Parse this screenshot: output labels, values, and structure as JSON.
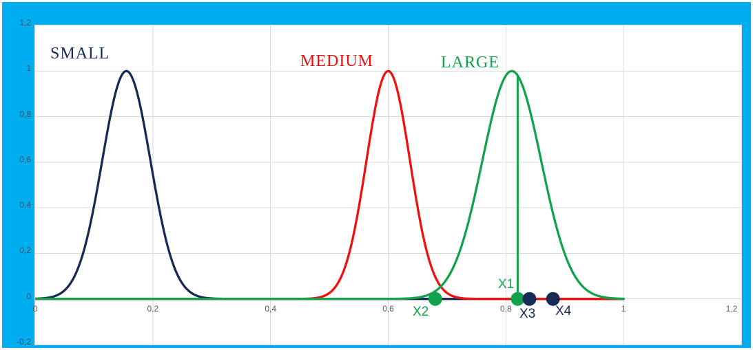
{
  "frame": {
    "border_color": "#00AEEF",
    "plot_background": "#FFFFFF",
    "grid_color": "#D9D9D9",
    "tick_text_color": "#595959"
  },
  "chart_data": {
    "type": "line",
    "title": "",
    "description": "Three bell-shaped fuzzy membership functions (SMALL, MEDIUM, LARGE) over a 0-1 universe, with crisp points X1, X2 (green, on LARGE with vertical stems) and X3, X4 (dark navy) marked on the zero axis",
    "xlabel": "",
    "ylabel": "",
    "xlim": [
      0,
      1.2
    ],
    "ylim": [
      -0.2,
      1.2
    ],
    "grid": true,
    "legend_position": "none",
    "x_ticks": [
      {
        "value": 0,
        "label": "0"
      },
      {
        "value": 0.2,
        "label": "0,2"
      },
      {
        "value": 0.4,
        "label": "0,4"
      },
      {
        "value": 0.6,
        "label": "0,6"
      },
      {
        "value": 0.8,
        "label": "0,8"
      },
      {
        "value": 1,
        "label": "1"
      },
      {
        "value": 1.2,
        "label": "1,2"
      }
    ],
    "y_ticks": [
      {
        "value": -0.2,
        "label": "-0,2"
      },
      {
        "value": 0,
        "label": "0"
      },
      {
        "value": 0.2,
        "label": "0,2"
      },
      {
        "value": 0.4,
        "label": "0,4"
      },
      {
        "value": 0.6,
        "label": "0,6"
      },
      {
        "value": 0.8,
        "label": "0,8"
      },
      {
        "value": 1,
        "label": "1"
      },
      {
        "value": 1.2,
        "label": "1,2"
      }
    ],
    "series": [
      {
        "name": "SMALL",
        "color": "#172B54",
        "shape": "gaussian",
        "mean": 0.155,
        "sigma": 0.041,
        "peak": 1.0,
        "domain": [
          0,
          1
        ]
      },
      {
        "name": "MEDIUM",
        "color": "#EE1111",
        "shape": "gaussian",
        "mean": 0.6,
        "sigma": 0.037,
        "peak": 1.0,
        "domain": [
          0,
          1
        ]
      },
      {
        "name": "LARGE",
        "color": "#12A24B",
        "shape": "gaussian",
        "mean": 0.81,
        "sigma": 0.05,
        "peak": 1.0,
        "domain": [
          0,
          1
        ]
      }
    ],
    "markers": [
      {
        "label": "X1",
        "x": 0.82,
        "y": 0,
        "color": "#12A24B",
        "stem_to_curve": "LARGE",
        "label_position": "above-left"
      },
      {
        "label": "X2",
        "x": 0.68,
        "y": 0,
        "color": "#12A24B",
        "stem_to_curve": "LARGE",
        "label_position": "below-left"
      },
      {
        "label": "X3",
        "x": 0.84,
        "y": 0,
        "color": "#172B54",
        "stem_to_curve": null,
        "label_position": "below"
      },
      {
        "label": "X4",
        "x": 0.88,
        "y": 0,
        "color": "#172B54",
        "stem_to_curve": null,
        "label_position": "below-right"
      }
    ]
  }
}
